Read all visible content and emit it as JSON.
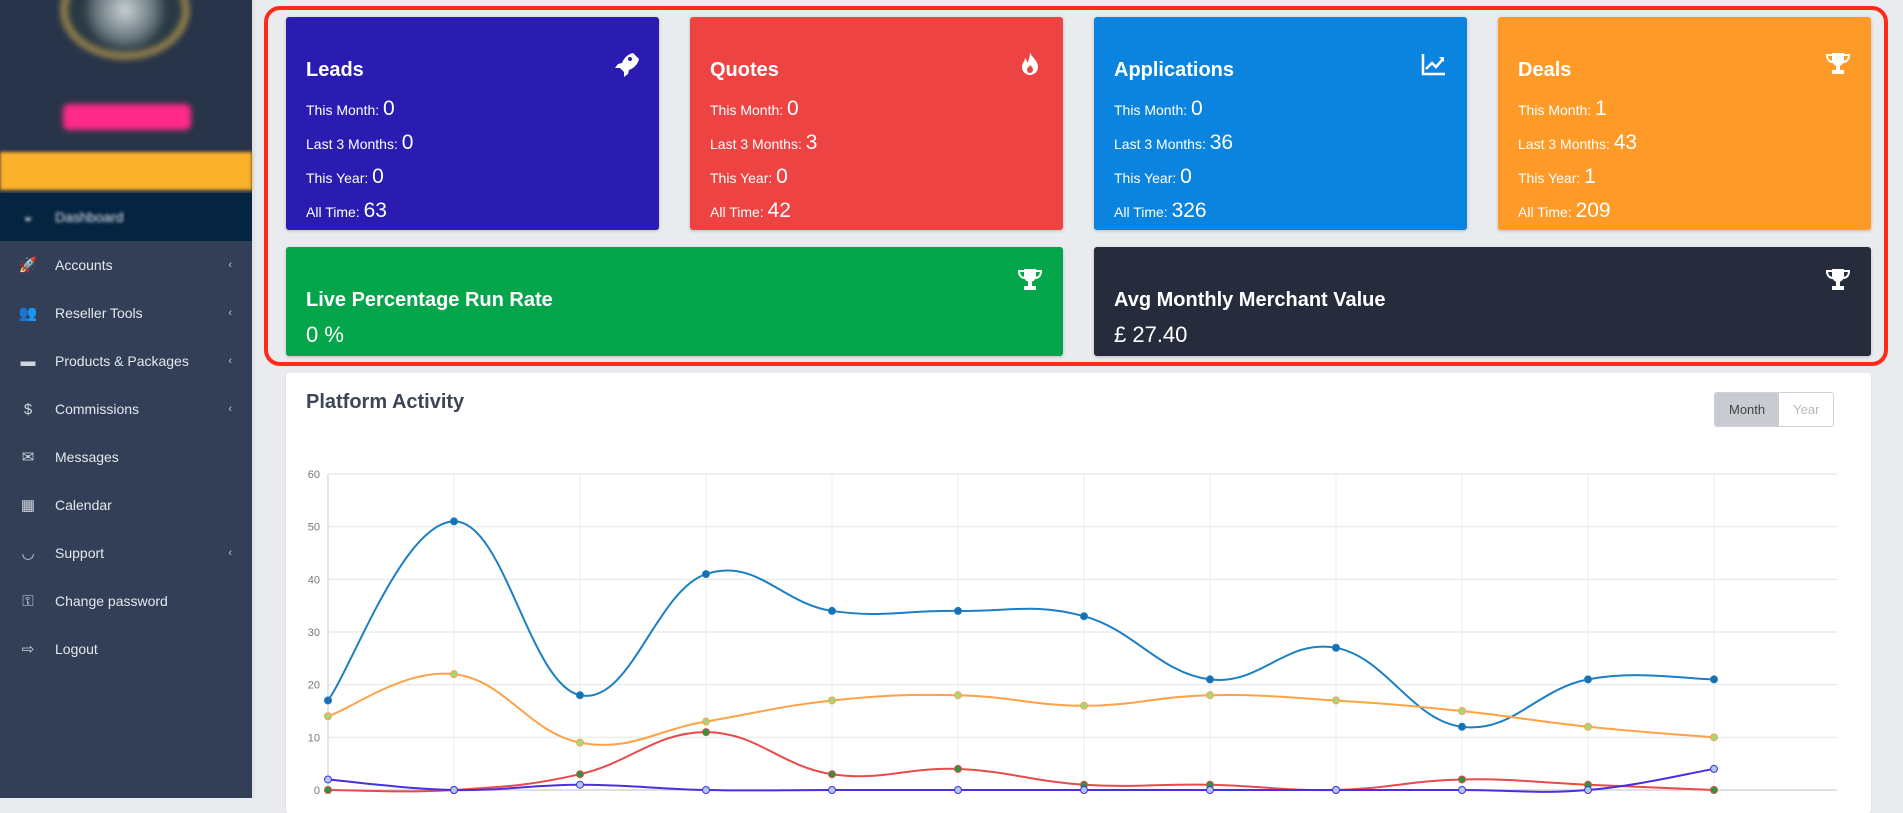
{
  "sidebar": {
    "items": [
      {
        "label": "Dashboard",
        "icon": "dashboard-icon",
        "active": true,
        "chevron": false
      },
      {
        "label": "Accounts",
        "icon": "rocket-icon",
        "chevron": true
      },
      {
        "label": "Reseller Tools",
        "icon": "users-icon",
        "chevron": true
      },
      {
        "label": "Products & Packages",
        "icon": "hdd-icon",
        "chevron": true
      },
      {
        "label": "Commissions",
        "icon": "dollar-icon",
        "chevron": true
      },
      {
        "label": "Messages",
        "icon": "envelope-icon",
        "chevron": false
      },
      {
        "label": "Calendar",
        "icon": "calendar-icon",
        "chevron": false
      },
      {
        "label": "Support",
        "icon": "headset-icon",
        "chevron": true
      },
      {
        "label": "Change password",
        "icon": "key-icon",
        "chevron": false
      },
      {
        "label": "Logout",
        "icon": "logout-icon",
        "chevron": false
      }
    ]
  },
  "labels": {
    "month": "This Month:",
    "last3": "Last 3 Months:",
    "year": "This Year:",
    "all": "All Time:"
  },
  "cards": [
    {
      "title": "Leads",
      "icon": "rocket-icon",
      "color": "#2a1cb0",
      "month": "0",
      "last3": "0",
      "year": "0",
      "all": "63"
    },
    {
      "title": "Quotes",
      "icon": "fire-icon",
      "color": "#ee4343",
      "month": "0",
      "last3": "3",
      "year": "0",
      "all": "42"
    },
    {
      "title": "Applications",
      "icon": "chart-line-icon",
      "color": "#0a84df",
      "month": "0",
      "last3": "36",
      "year": "0",
      "all": "326"
    },
    {
      "title": "Deals",
      "icon": "trophy-icon",
      "color": "#fe9a28",
      "month": "1",
      "last3": "43",
      "year": "1",
      "all": "209"
    }
  ],
  "wide": [
    {
      "title": "Live Percentage Run Rate",
      "value": "0 %",
      "icon": "trophy-icon",
      "color": "#05a54b"
    },
    {
      "title": "Avg Monthly Merchant Value",
      "value": "£ 27.40",
      "icon": "trophy-icon",
      "color": "#262c3b"
    }
  ],
  "chart": {
    "title": "Platform Activity",
    "toggle": [
      "Month",
      "Year"
    ],
    "selected": "Month"
  },
  "chart_data": {
    "type": "line",
    "title": "Platform Activity",
    "ylim": [
      0,
      60
    ],
    "yticks": [
      0,
      10,
      20,
      30,
      40,
      50,
      60
    ],
    "grid": true,
    "series": [
      {
        "color": "#1a7fc4",
        "point_color": "#1a6fb0",
        "values": [
          17,
          51,
          18,
          41,
          34,
          34,
          33,
          21,
          27,
          12,
          21,
          21
        ]
      },
      {
        "color": "#ffa247",
        "point_color": "#a4d67f",
        "values": [
          14,
          22,
          9,
          13,
          17,
          18,
          16,
          18,
          17,
          15,
          12,
          10
        ]
      },
      {
        "color": "#e84a4a",
        "point_color": "#1f9a3f",
        "values": [
          0,
          0,
          3,
          11,
          3,
          4,
          1,
          1,
          0,
          2,
          1,
          0
        ]
      },
      {
        "color": "#4a2ee0",
        "point_color": "#a9cbe8",
        "values": [
          2,
          0,
          1,
          0,
          0,
          0,
          0,
          0,
          0,
          0,
          0,
          4
        ]
      }
    ]
  }
}
